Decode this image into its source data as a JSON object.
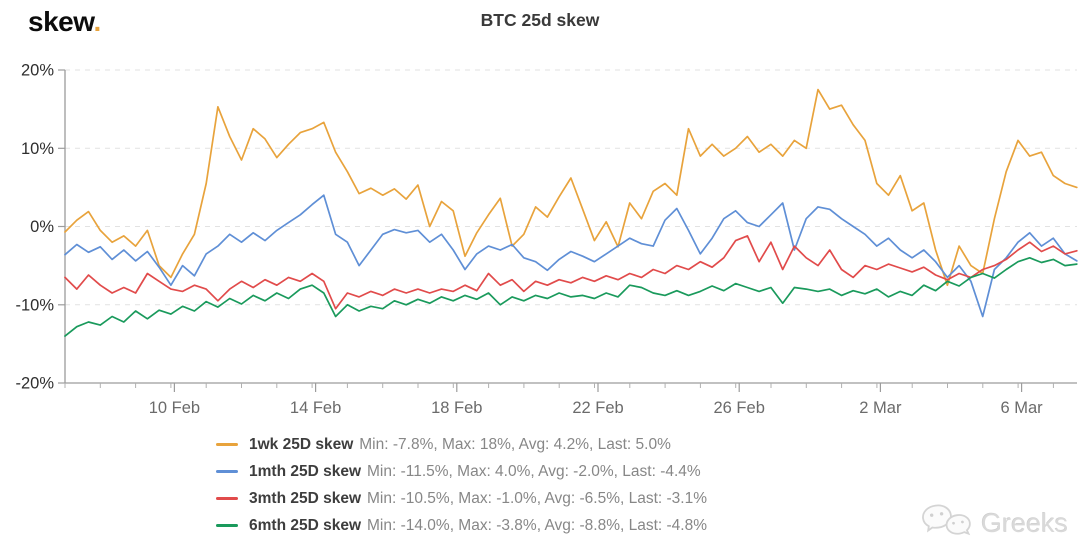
{
  "logo": {
    "text": "skew",
    "dot": "."
  },
  "header": {
    "title": "BTC 25d skew"
  },
  "watermark": {
    "icon": "wechat-icon",
    "text": "Greeks"
  },
  "chart_data": {
    "type": "line",
    "title": "BTC 25d skew",
    "xlabel": "",
    "ylabel": "",
    "ylim": [
      -20,
      20
    ],
    "grid": "dashed horizontal gridlines at 10% steps",
    "legend_position": "bottom-left",
    "x_unit": "days (day 0 = chart start, approx 7 Feb)",
    "x_max": 28.67,
    "x_ticks": [
      {
        "day": 3.1,
        "label": "10 Feb"
      },
      {
        "day": 7.1,
        "label": "14 Feb"
      },
      {
        "day": 11.1,
        "label": "18 Feb"
      },
      {
        "day": 15.1,
        "label": "22 Feb"
      },
      {
        "day": 19.1,
        "label": "26 Feb"
      },
      {
        "day": 23.1,
        "label": "2 Mar"
      },
      {
        "day": 27.1,
        "label": "6 Mar"
      }
    ],
    "y_ticks": [
      {
        "value": 20,
        "label": "20%"
      },
      {
        "value": 10,
        "label": "10%"
      },
      {
        "value": 0,
        "label": "0%"
      },
      {
        "value": -10,
        "label": "-10%"
      },
      {
        "value": -20,
        "label": "-20%"
      }
    ],
    "series": [
      {
        "name": "1wk 25D skew",
        "color": "#e8a33c",
        "stats": {
          "min": "-7.8%",
          "max": "18%",
          "avg": "4.2%",
          "last": "5.0%"
        },
        "stats_text": "Min: -7.8%, Max: 18%, Avg: 4.2%, Last: 5.0%",
        "x_start": 0,
        "x_step": 0.3333,
        "values": [
          -0.7,
          0.8,
          1.9,
          -0.5,
          -2,
          -1.2,
          -2.5,
          -0.5,
          -5,
          -6.5,
          -3.5,
          -1,
          5.5,
          15.3,
          11.5,
          8.5,
          12.5,
          11.2,
          8.8,
          10.5,
          12,
          12.5,
          13.3,
          9.5,
          7,
          4.2,
          4.9,
          4,
          4.8,
          3.5,
          5.3,
          0,
          3.2,
          2,
          -3.8,
          -0.8,
          1.5,
          3.6,
          -2.5,
          -1,
          2.5,
          1.2,
          3.8,
          6.2,
          2.2,
          -1.8,
          0.6,
          -2.6,
          3,
          1,
          4.5,
          5.5,
          4,
          12.5,
          9,
          10.5,
          9,
          10,
          11.5,
          9.5,
          10.5,
          9,
          11,
          10,
          17.5,
          15,
          15.5,
          13,
          11,
          5.5,
          4,
          6.5,
          2,
          3,
          -3,
          -7.5,
          -2.5,
          -5,
          -6,
          1,
          7,
          11,
          9,
          9.5,
          6.5,
          5.5,
          5
        ]
      },
      {
        "name": "1mth 25D skew",
        "color": "#5f8fd6",
        "stats": {
          "min": "-11.5%",
          "max": "4.0%",
          "avg": "-2.0%",
          "last": "-4.4%"
        },
        "stats_text": "Min: -11.5%, Max: 4.0%, Avg: -2.0%, Last: -4.4%",
        "x_start": 0,
        "x_step": 0.3333,
        "values": [
          -3.6,
          -2.3,
          -3.3,
          -2.6,
          -4.2,
          -3,
          -4.4,
          -3.2,
          -5.2,
          -7.5,
          -5,
          -6.3,
          -3.5,
          -2.5,
          -1,
          -2,
          -0.8,
          -1.8,
          -0.5,
          0.5,
          1.5,
          2.8,
          4,
          -1,
          -2,
          -5,
          -3,
          -1,
          -0.4,
          -0.8,
          -0.5,
          -2,
          -1,
          -3,
          -5.5,
          -3.5,
          -2.5,
          -3,
          -2.3,
          -4,
          -4.5,
          -5.6,
          -4.2,
          -3.2,
          -3.8,
          -4.5,
          -3.5,
          -2.5,
          -1.5,
          -2.2,
          -2.5,
          0.8,
          2.3,
          -0.5,
          -3.5,
          -1.5,
          1,
          2,
          0.5,
          0,
          1.5,
          3,
          -3,
          1,
          2.5,
          2.2,
          1,
          0,
          -1,
          -2.5,
          -1.5,
          -3,
          -4,
          -3,
          -4.5,
          -6.5,
          -5,
          -7,
          -11.5,
          -5.5,
          -4,
          -2,
          -0.8,
          -2.5,
          -1.5,
          -3.5,
          -4.4
        ]
      },
      {
        "name": "3mth 25D skew",
        "color": "#e14b4b",
        "stats": {
          "min": "-10.5%",
          "max": "-1.0%",
          "avg": "-6.5%",
          "last": "-3.1%"
        },
        "stats_text": "Min: -10.5%, Max: -1.0%, Avg: -6.5%, Last: -3.1%",
        "x_start": 0,
        "x_step": 0.3333,
        "values": [
          -6.5,
          -8,
          -6.2,
          -7.5,
          -8.5,
          -7.8,
          -8.5,
          -6,
          -7,
          -8,
          -8.3,
          -7.5,
          -8,
          -9.5,
          -8,
          -7,
          -7.8,
          -6.8,
          -7.5,
          -6.5,
          -7,
          -6,
          -7,
          -10.5,
          -8.5,
          -9,
          -8.3,
          -8.8,
          -8,
          -8.5,
          -8,
          -8.5,
          -8,
          -8.3,
          -7.5,
          -8.2,
          -6,
          -7.5,
          -6.8,
          -8.3,
          -7,
          -7.5,
          -6.8,
          -7.2,
          -6.5,
          -7,
          -6.3,
          -6.8,
          -6,
          -6.5,
          -5.5,
          -6,
          -5,
          -5.5,
          -4.5,
          -5.2,
          -4,
          -1.8,
          -1.2,
          -4.5,
          -2,
          -5.5,
          -2.5,
          -4,
          -5,
          -3,
          -5.5,
          -6.5,
          -5,
          -5.5,
          -4.8,
          -5.3,
          -5.8,
          -5.2,
          -6.2,
          -6.8,
          -6,
          -6.5,
          -5.5,
          -5,
          -4.2,
          -3,
          -2,
          -3.2,
          -2.5,
          -3.5,
          -3.1
        ]
      },
      {
        "name": "6mth 25D skew",
        "color": "#1a9a5c",
        "stats": {
          "min": "-14.0%",
          "max": "-3.8%",
          "avg": "-8.8%",
          "last": "-4.8%"
        },
        "stats_text": "Min: -14.0%, Max: -3.8%, Avg: -8.8%, Last: -4.8%",
        "x_start": 0,
        "x_step": 0.3333,
        "values": [
          -14,
          -12.8,
          -12.2,
          -12.6,
          -11.5,
          -12.2,
          -10.8,
          -11.8,
          -10.7,
          -11.2,
          -10.2,
          -10.8,
          -9.6,
          -10.3,
          -9.2,
          -9.9,
          -8.8,
          -9.5,
          -8.5,
          -9.2,
          -8,
          -7.5,
          -8.5,
          -11.5,
          -10,
          -10.8,
          -10.2,
          -10.5,
          -9.5,
          -10,
          -9.3,
          -9.8,
          -9,
          -9.5,
          -8.8,
          -9.3,
          -8.5,
          -10,
          -9,
          -9.5,
          -8.8,
          -9.2,
          -8.5,
          -9,
          -8.8,
          -9.2,
          -8.5,
          -9,
          -7.5,
          -7.8,
          -8.5,
          -8.8,
          -8.2,
          -8.8,
          -8.3,
          -7.6,
          -8.2,
          -7.3,
          -7.8,
          -8.3,
          -7.8,
          -9.8,
          -7.8,
          -8,
          -8.3,
          -8,
          -8.8,
          -8.2,
          -8.6,
          -8,
          -9,
          -8.3,
          -8.8,
          -7.5,
          -8.2,
          -7,
          -7.6,
          -6.5,
          -6,
          -6.6,
          -5.5,
          -4.5,
          -4,
          -4.6,
          -4.2,
          -5,
          -4.8
        ]
      }
    ]
  }
}
